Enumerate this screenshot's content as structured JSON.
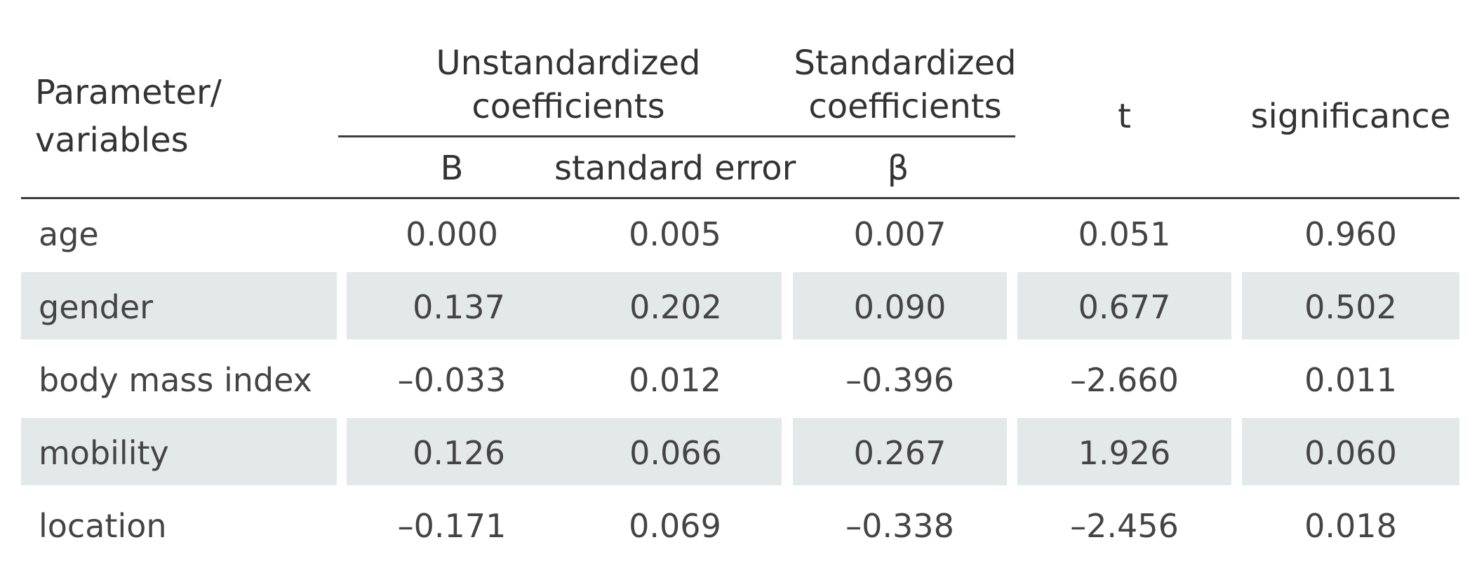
{
  "table": {
    "header": {
      "parameter_line1": "Parameter/",
      "parameter_line2": "variables",
      "unstd_line1": "Unstandardized",
      "unstd_line2": "coefficients",
      "std_line1": "Standardized",
      "std_line2": "coefficients",
      "t": "t",
      "significance": "significance",
      "sub_b": "B",
      "sub_se": "standard error",
      "sub_beta": "β"
    },
    "rows": [
      {
        "label": "age",
        "b": "0.000",
        "se": "0.005",
        "beta": "0.007",
        "t": "0.051",
        "sig": "0.960"
      },
      {
        "label": "gender",
        "b": "0.137",
        "se": "0.202",
        "beta": "0.090",
        "t": "0.677",
        "sig": "0.502"
      },
      {
        "label": "body mass index",
        "b": "–0.033",
        "se": "0.012",
        "beta": "–0.396",
        "t": "–2.660",
        "sig": "0.011"
      },
      {
        "label": "mobility",
        "b": "0.126",
        "se": "0.066",
        "beta": "0.267",
        "t": "1.926",
        "sig": "0.060"
      },
      {
        "label": "location",
        "b": "–0.171",
        "se": "0.069",
        "beta": "–0.338",
        "t": "–2.456",
        "sig": "0.018"
      }
    ]
  }
}
